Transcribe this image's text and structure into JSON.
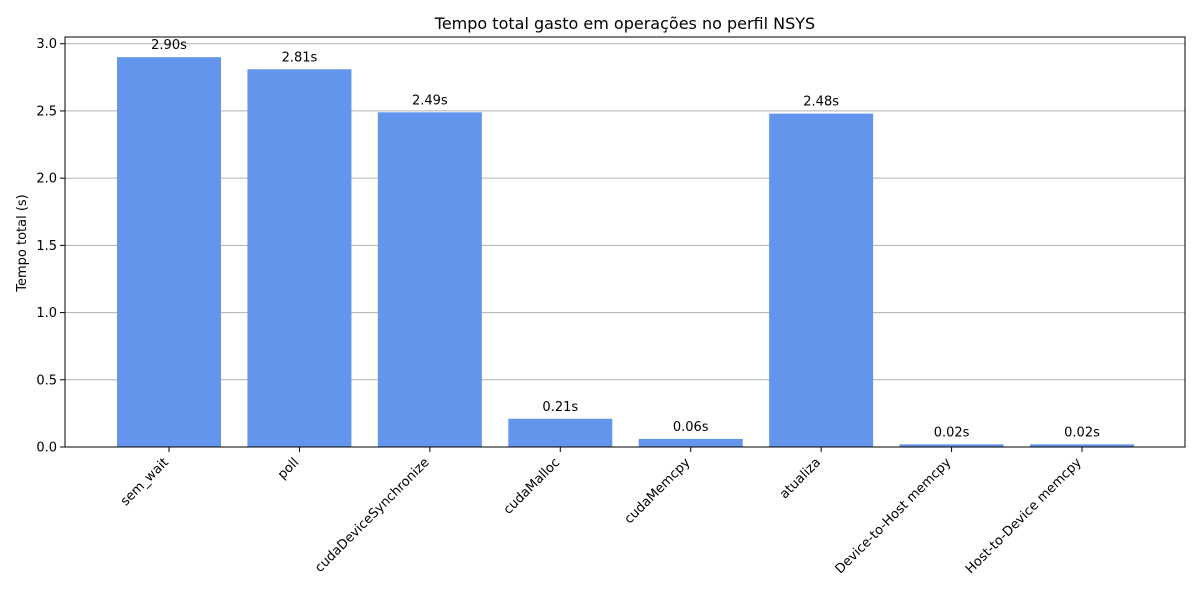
{
  "chart_data": {
    "type": "bar",
    "title": "Tempo total gasto em operações no perfil NSYS",
    "xlabel": "",
    "ylabel": "Tempo total (s)",
    "categories": [
      "sem_wait",
      "poll",
      "cudaDeviceSynchronize",
      "cudaMalloc",
      "cudaMemcpy",
      "atualiza",
      "Device-to-Host memcpy",
      "Host-to-Device memcpy"
    ],
    "values": [
      2.9,
      2.81,
      2.49,
      0.21,
      0.06,
      2.48,
      0.02,
      0.02
    ],
    "value_labels": [
      "2.90s",
      "2.81s",
      "2.49s",
      "0.21s",
      "0.06s",
      "2.48s",
      "0.02s",
      "0.02s"
    ],
    "ylim": [
      0,
      3.05
    ],
    "yticks": [
      "0.0",
      "0.5",
      "1.0",
      "1.5",
      "2.0",
      "2.5",
      "3.0"
    ],
    "grid": "y",
    "bar_color": "#6495ED"
  }
}
